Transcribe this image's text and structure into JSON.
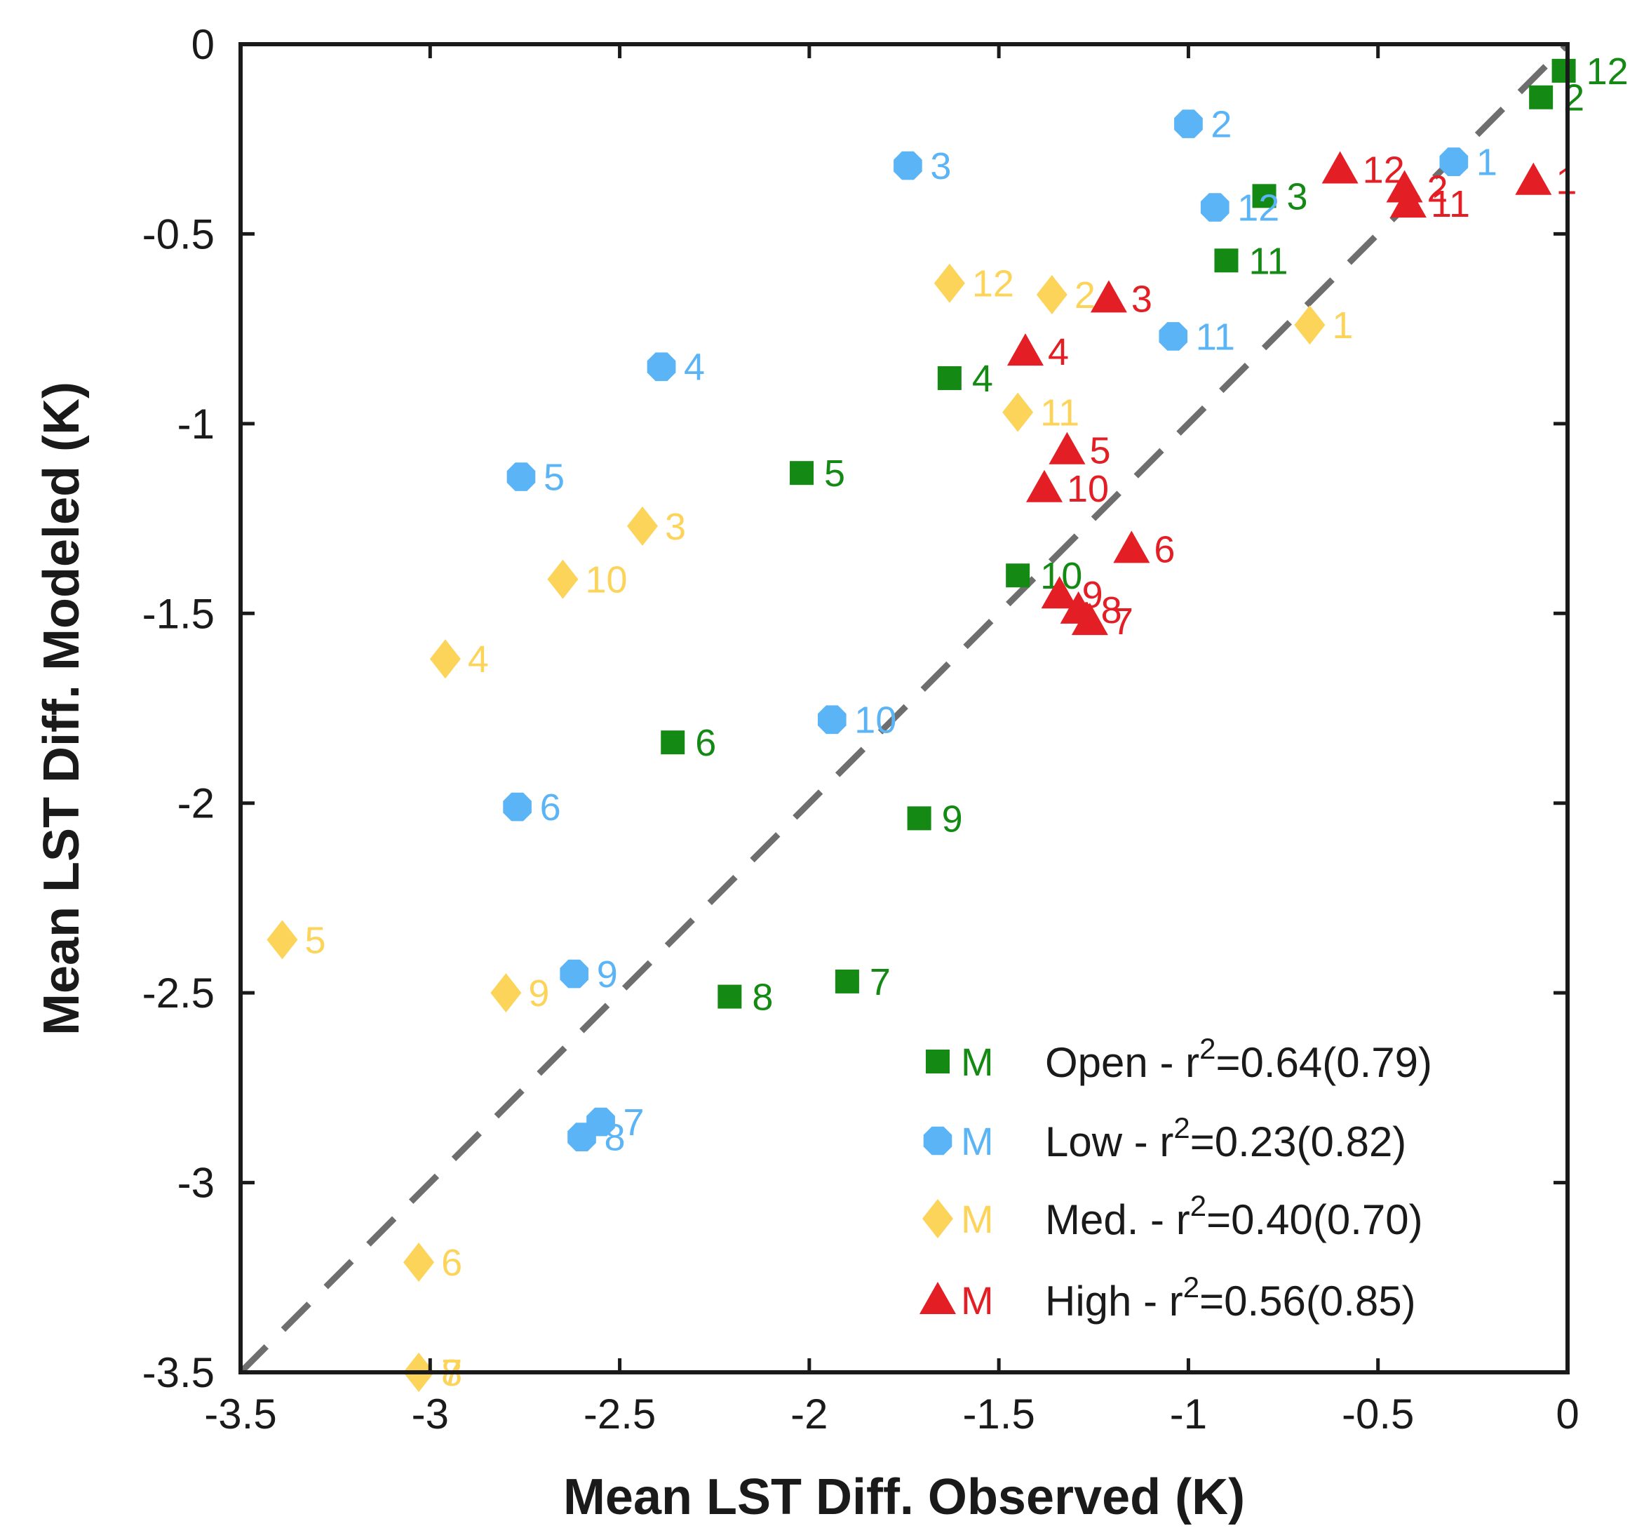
{
  "chart_data": {
    "type": "scatter",
    "xlabel": "Mean LST Diff. Observed (K)",
    "ylabel": "Mean LST Diff. Modeled (K)",
    "xlim": [
      -3.5,
      0
    ],
    "ylim": [
      -3.5,
      0
    ],
    "xticks": [
      -3.5,
      -3,
      -2.5,
      -2,
      -1.5,
      -1,
      -0.5,
      0
    ],
    "yticks": [
      -3.5,
      -3,
      -2.5,
      -2,
      -1.5,
      -1,
      -0.5,
      0
    ],
    "xtick_labels": [
      "-3.5",
      "-3",
      "-2.5",
      "-2",
      "-1.5",
      "-1",
      "-0.5",
      "0"
    ],
    "ytick_labels": [
      "-3.5",
      "-3",
      "-2.5",
      "-2",
      "-1.5",
      "-1",
      "-0.5",
      "0"
    ],
    "reference_line": {
      "type": "1:1",
      "style": "dashed",
      "color": "#6e6e6e"
    },
    "legend": {
      "position": "bottom-right",
      "marker_label": "M",
      "entries": [
        {
          "series": "Open",
          "text": "Open - r",
          "sup": "2",
          "rest": "=0.64(0.79)"
        },
        {
          "series": "Low",
          "text": "Low - r",
          "sup": "2",
          "rest": "=0.23(0.82)"
        },
        {
          "series": "Med.",
          "text": "Med. - r",
          "sup": "2",
          "rest": "=0.40(0.70)"
        },
        {
          "series": "High",
          "text": "High - r",
          "sup": "2",
          "rest": "=0.56(0.85)"
        }
      ]
    },
    "series": [
      {
        "name": "Open",
        "marker": "square",
        "color": "#148a14",
        "points": [
          {
            "label": "12",
            "x": -0.01,
            "y": -0.07
          },
          {
            "label": "2",
            "x": -0.07,
            "y": -0.14
          },
          {
            "label": "3",
            "x": -0.8,
            "y": -0.4
          },
          {
            "label": "11",
            "x": -0.9,
            "y": -0.57
          },
          {
            "label": "4",
            "x": -1.63,
            "y": -0.88
          },
          {
            "label": "5",
            "x": -2.02,
            "y": -1.13
          },
          {
            "label": "10",
            "x": -1.45,
            "y": -1.4
          },
          {
            "label": "6",
            "x": -2.36,
            "y": -1.84
          },
          {
            "label": "9",
            "x": -1.71,
            "y": -2.04
          },
          {
            "label": "7",
            "x": -1.9,
            "y": -2.47
          },
          {
            "label": "8",
            "x": -2.21,
            "y": -2.51
          }
        ]
      },
      {
        "name": "Low",
        "marker": "circle",
        "color": "#5ab4f5",
        "points": [
          {
            "label": "2",
            "x": -1.0,
            "y": -0.21
          },
          {
            "label": "1",
            "x": -0.3,
            "y": -0.31
          },
          {
            "label": "3",
            "x": -1.74,
            "y": -0.32
          },
          {
            "label": "12",
            "x": -0.93,
            "y": -0.43
          },
          {
            "label": "11",
            "x": -1.04,
            "y": -0.77
          },
          {
            "label": "4",
            "x": -2.39,
            "y": -0.85
          },
          {
            "label": "5",
            "x": -2.76,
            "y": -1.14
          },
          {
            "label": "10",
            "x": -1.94,
            "y": -1.78
          },
          {
            "label": "6",
            "x": -2.77,
            "y": -2.01
          },
          {
            "label": "9",
            "x": -2.62,
            "y": -2.45
          },
          {
            "label": "7",
            "x": -2.55,
            "y": -2.84
          },
          {
            "label": "8",
            "x": -2.6,
            "y": -2.88
          }
        ]
      },
      {
        "name": "Med.",
        "marker": "diamond",
        "color": "#fcd45a",
        "points": [
          {
            "label": "12",
            "x": -1.63,
            "y": -0.63
          },
          {
            "label": "2",
            "x": -1.36,
            "y": -0.66
          },
          {
            "label": "1",
            "x": -0.68,
            "y": -0.74
          },
          {
            "label": "11",
            "x": -1.45,
            "y": -0.97
          },
          {
            "label": "3",
            "x": -2.44,
            "y": -1.27
          },
          {
            "label": "10",
            "x": -2.65,
            "y": -1.41
          },
          {
            "label": "4",
            "x": -2.96,
            "y": -1.62
          },
          {
            "label": "5",
            "x": -3.39,
            "y": -2.36
          },
          {
            "label": "9",
            "x": -2.8,
            "y": -2.5
          },
          {
            "label": "6",
            "x": -3.03,
            "y": -3.21
          },
          {
            "label": "7",
            "x": -3.03,
            "y": -3.5
          },
          {
            "label": "8",
            "x": -3.03,
            "y": -3.5
          }
        ]
      },
      {
        "name": "High",
        "marker": "triangle",
        "color": "#e31e24",
        "points": [
          {
            "label": "1",
            "x": -0.09,
            "y": -0.36
          },
          {
            "label": "12",
            "x": -0.6,
            "y": -0.33
          },
          {
            "label": "2",
            "x": -0.43,
            "y": -0.38
          },
          {
            "label": "11",
            "x": -0.42,
            "y": -0.42
          },
          {
            "label": "3",
            "x": -1.21,
            "y": -0.67
          },
          {
            "label": "4",
            "x": -1.43,
            "y": -0.81
          },
          {
            "label": "5",
            "x": -1.32,
            "y": -1.07
          },
          {
            "label": "10",
            "x": -1.38,
            "y": -1.17
          },
          {
            "label": "6",
            "x": -1.15,
            "y": -1.33
          },
          {
            "label": "9",
            "x": -1.34,
            "y": -1.45
          },
          {
            "label": "8",
            "x": -1.29,
            "y": -1.49
          },
          {
            "label": "7",
            "x": -1.26,
            "y": -1.52
          }
        ]
      }
    ]
  }
}
